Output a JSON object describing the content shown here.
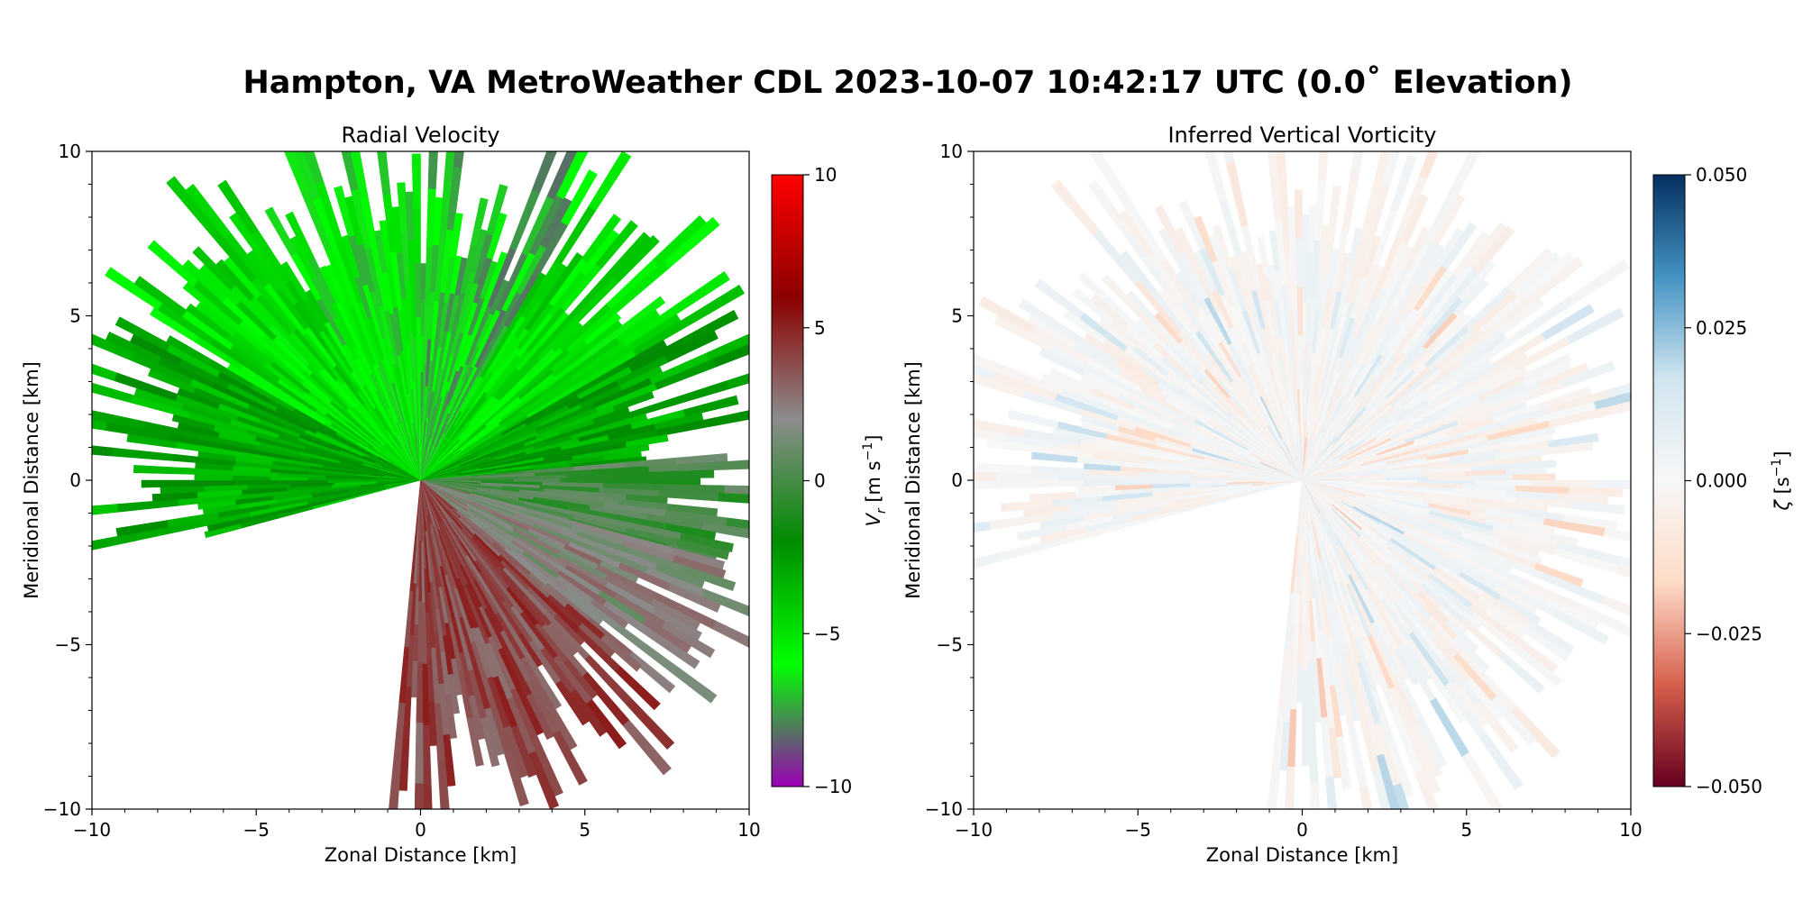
{
  "figure": {
    "suptitle": "Hampton, VA MetroWeather CDL 2023-10-07 10:42:17 UTC (0.0˚ Elevation)"
  },
  "chart_data": [
    {
      "type": "heatmap",
      "projection": "polar radar sweep (PPI)",
      "title": "Radial Velocity",
      "xlabel": "Zonal Distance [km]",
      "ylabel": "Meridional Distance [km]",
      "xlim": [
        -10,
        10
      ],
      "ylim": [
        -10,
        10
      ],
      "xticks": [
        "−10",
        "−5",
        "0",
        "5",
        "10"
      ],
      "yticks": [
        "−10",
        "−5",
        "0",
        "5",
        "10"
      ],
      "colorbar": {
        "label": "V_r [m s⁻¹]",
        "label_main": "V",
        "label_sub": "r",
        "label_units": " [m s",
        "label_exp": "−1",
        "label_close": "]",
        "range": [
          -10,
          10
        ],
        "ticks": [
          "10",
          "5",
          "0",
          "−5",
          "−10"
        ],
        "colors": [
          "#9b00b4",
          "#00ff00",
          "#008c00",
          "#8c8c8c",
          "#8c0000",
          "#ff0000"
        ]
      },
      "sweep": {
        "max_range_km": 12,
        "sectors": [
          {
            "from_deg": 0,
            "to_deg": 30,
            "velocity": -7
          },
          {
            "from_deg": 30,
            "to_deg": 60,
            "velocity": -5
          },
          {
            "from_deg": 60,
            "to_deg": 85,
            "velocity": -3
          },
          {
            "from_deg": 85,
            "to_deg": 105,
            "velocity": 0
          },
          {
            "from_deg": 105,
            "to_deg": 130,
            "velocity": 2
          },
          {
            "from_deg": 130,
            "to_deg": 185,
            "velocity": 4
          },
          {
            "from_deg": 255,
            "to_deg": 300,
            "velocity": -3
          },
          {
            "from_deg": 300,
            "to_deg": 330,
            "velocity": -5
          },
          {
            "from_deg": 330,
            "to_deg": 360,
            "velocity": -6
          }
        ]
      }
    },
    {
      "type": "heatmap",
      "projection": "polar radar sweep (PPI)",
      "title": "Inferred Vertical Vorticity",
      "xlabel": "Zonal Distance [km]",
      "ylabel": "Meridional Distance [km]",
      "xlim": [
        -10,
        10
      ],
      "ylim": [
        -10,
        10
      ],
      "xticks": [
        "−10",
        "−5",
        "0",
        "5",
        "10"
      ],
      "yticks": [
        "−10",
        "−5",
        "0",
        "5",
        "10"
      ],
      "colorbar": {
        "label": "ζ [s⁻¹]",
        "label_main": "ζ",
        "label_units": " [s",
        "label_exp": "−1",
        "label_close": "]",
        "range": [
          -0.05,
          0.05
        ],
        "ticks": [
          "0.050",
          "0.025",
          "0.000",
          "−0.025",
          "−0.050"
        ],
        "colors": [
          "#67001f",
          "#d6604d",
          "#fddbc7",
          "#f7f7f7",
          "#d1e5f0",
          "#4393c3",
          "#053061"
        ]
      },
      "sweep": {
        "max_range_km": 12,
        "sectors": [
          {
            "from_deg": 0,
            "to_deg": 185,
            "vorticity": 0.0
          },
          {
            "from_deg": 255,
            "to_deg": 360,
            "vorticity": 0.0
          }
        ]
      }
    }
  ]
}
